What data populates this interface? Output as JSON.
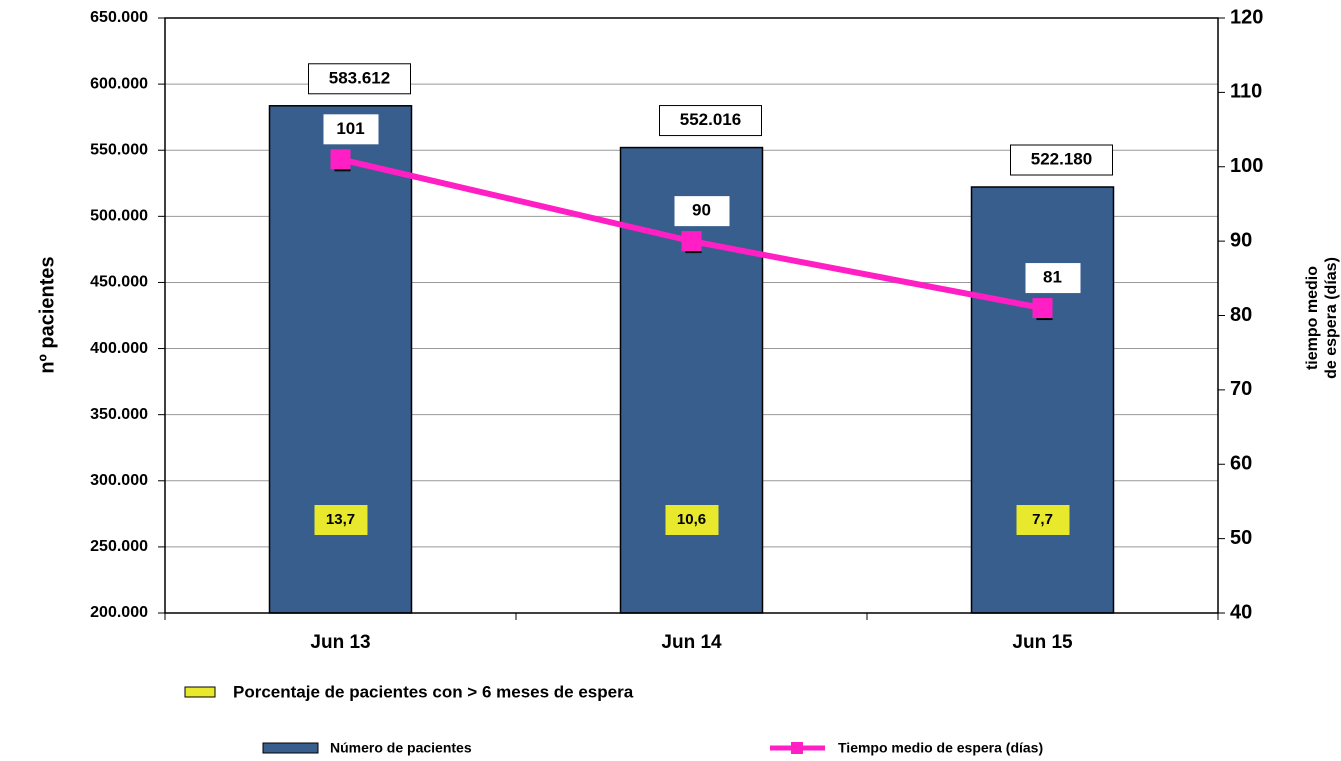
{
  "chart_data": {
    "type": "bar",
    "y_label": "nº pacientes",
    "y2_label": [
      "tiempo medio",
      "de espera (días)"
    ],
    "categories": [
      "Jun 13",
      "Jun 14",
      "Jun 15"
    ],
    "series": [
      {
        "name": "Número de pacientes",
        "type": "bar",
        "color": "#375e8d",
        "values": [
          583612,
          552016,
          522180
        ],
        "value_labels": [
          "583.612",
          "552.016",
          "522.180"
        ]
      },
      {
        "name": "Tiempo medio de espera (días)",
        "type": "line",
        "axis": "y2",
        "color": "#ff1fc4",
        "values": [
          101,
          90,
          81
        ]
      },
      {
        "name": "Porcentaje de pacientes con > 6 meses  de espera",
        "type": "label",
        "color": "#e8e82c",
        "values": [
          13.7,
          10.6,
          7.7
        ],
        "value_labels": [
          "13,7",
          "10,6",
          "7,7"
        ]
      }
    ],
    "ylim": [
      200000,
      650000
    ],
    "yticks": [
      {
        "value": 200000,
        "label": "200.000"
      },
      {
        "value": 250000,
        "label": "250.000"
      },
      {
        "value": 300000,
        "label": "300.000"
      },
      {
        "value": 350000,
        "label": "350.000"
      },
      {
        "value": 400000,
        "label": "400.000"
      },
      {
        "value": 450000,
        "label": "450.000"
      },
      {
        "value": 500000,
        "label": "500.000"
      },
      {
        "value": 550000,
        "label": "550.000"
      },
      {
        "value": 600000,
        "label": "600.000"
      },
      {
        "value": 650000,
        "label": "650.000"
      }
    ],
    "y2lim": [
      40,
      120
    ],
    "y2ticks": [
      40,
      50,
      60,
      70,
      80,
      90,
      100,
      110,
      120
    ],
    "grid": true
  }
}
